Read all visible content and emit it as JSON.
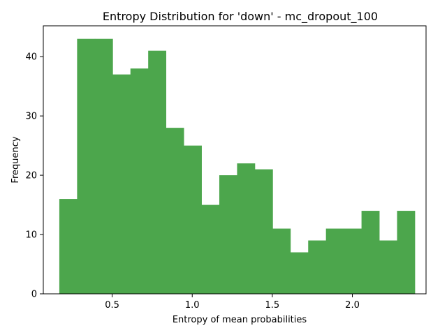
{
  "chart_data": {
    "type": "bar",
    "title": "Entropy Distribution for 'down' - mc_dropout_100",
    "xlabel": "Entropy of mean probabilities",
    "ylabel": "Frequency",
    "xlim": [
      0.07,
      2.46
    ],
    "ylim": [
      0,
      45.2
    ],
    "bin_edges": [
      0.17,
      0.281,
      0.392,
      0.503,
      0.614,
      0.725,
      0.836,
      0.947,
      1.058,
      1.169,
      1.28,
      1.391,
      1.502,
      1.613,
      1.724,
      1.835,
      1.946,
      2.057,
      2.168,
      2.279,
      2.39
    ],
    "values": [
      16,
      43,
      43,
      37,
      38,
      41,
      28,
      25,
      15,
      20,
      22,
      21,
      11,
      7,
      9,
      11,
      11,
      14,
      9,
      14
    ],
    "x_ticks": [
      0.5,
      1.0,
      1.5,
      2.0
    ],
    "x_tick_labels": [
      "0.5",
      "1.0",
      "1.5",
      "2.0"
    ],
    "y_ticks": [
      0,
      10,
      20,
      30,
      40
    ],
    "y_tick_labels": [
      "0",
      "10",
      "20",
      "30",
      "40"
    ],
    "bar_color": "#4ca64c",
    "grid": false,
    "legend": "none"
  }
}
